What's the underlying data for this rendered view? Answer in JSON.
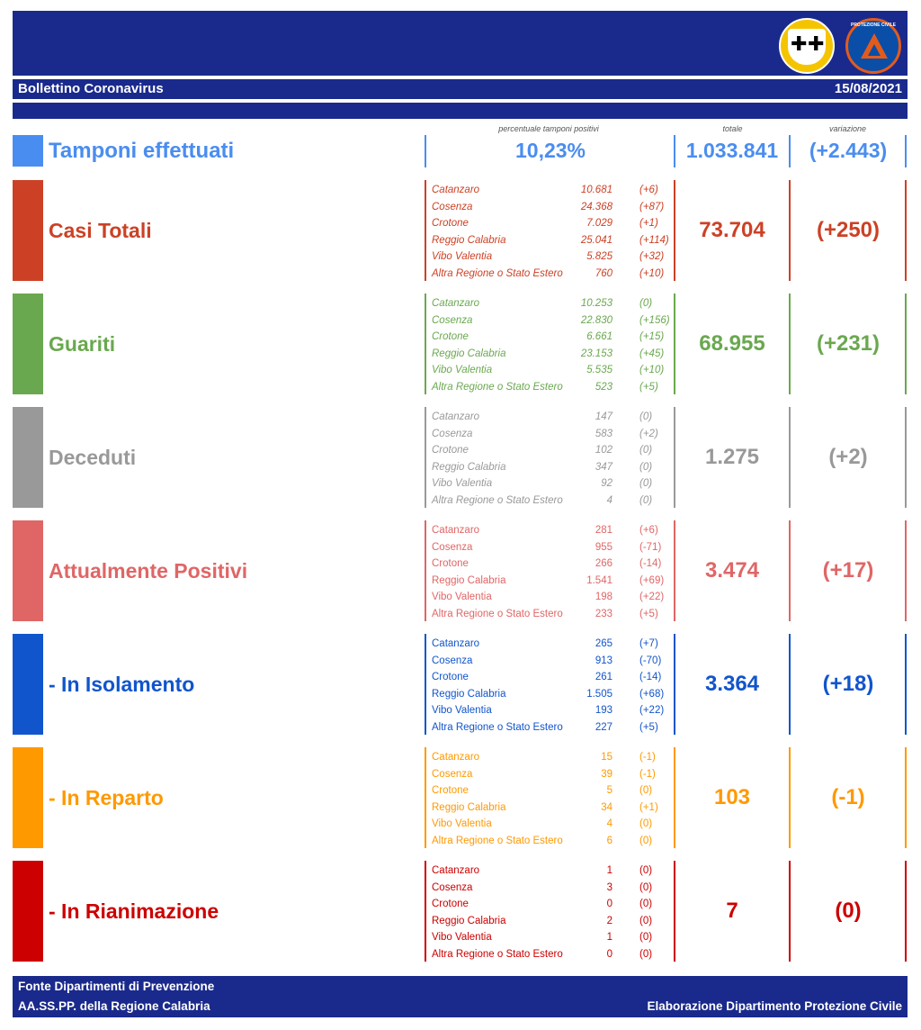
{
  "header": {
    "title": "Bollettino Coronavirus",
    "date": "15/08/2021",
    "col_percent": "percentuale tamponi positivi",
    "col_total": "totale",
    "col_variation": "variazione"
  },
  "tamponi": {
    "label": "Tamponi effettuati",
    "percent": "10,23%",
    "total": "1.033.841",
    "variation": "(+2.443)",
    "color": "#4a8df0"
  },
  "sections": [
    {
      "label": "Casi Totali",
      "color": "#cc4125",
      "italic": true,
      "total": "73.704",
      "variation": "(+250)",
      "rows": [
        {
          "name": "Catanzaro",
          "value": "10.681",
          "delta": "(+6)"
        },
        {
          "name": "Cosenza",
          "value": "24.368",
          "delta": "(+87)"
        },
        {
          "name": "Crotone",
          "value": "7.029",
          "delta": "(+1)"
        },
        {
          "name": "Reggio Calabria",
          "value": "25.041",
          "delta": "(+114)"
        },
        {
          "name": "Vibo Valentia",
          "value": "5.825",
          "delta": "(+32)"
        },
        {
          "name": "Altra Regione o Stato Estero",
          "value": "760",
          "delta": "(+10)"
        }
      ]
    },
    {
      "label": "Guariti",
      "color": "#6aa84f",
      "italic": true,
      "total": "68.955",
      "variation": "(+231)",
      "rows": [
        {
          "name": "Catanzaro",
          "value": "10.253",
          "delta": "(0)"
        },
        {
          "name": "Cosenza",
          "value": "22.830",
          "delta": "(+156)"
        },
        {
          "name": "Crotone",
          "value": "6.661",
          "delta": "(+15)"
        },
        {
          "name": "Reggio Calabria",
          "value": "23.153",
          "delta": "(+45)"
        },
        {
          "name": "Vibo Valentia",
          "value": "5.535",
          "delta": "(+10)"
        },
        {
          "name": "Altra Regione o Stato Estero",
          "value": "523",
          "delta": "(+5)"
        }
      ]
    },
    {
      "label": "Deceduti",
      "color": "#999999",
      "italic": true,
      "total": "1.275",
      "variation": "(+2)",
      "rows": [
        {
          "name": "Catanzaro",
          "value": "147",
          "delta": "(0)"
        },
        {
          "name": "Cosenza",
          "value": "583",
          "delta": "(+2)"
        },
        {
          "name": "Crotone",
          "value": "102",
          "delta": "(0)"
        },
        {
          "name": "Reggio Calabria",
          "value": "347",
          "delta": "(0)"
        },
        {
          "name": "Vibo Valentia",
          "value": "92",
          "delta": "(0)"
        },
        {
          "name": "Altra Regione o Stato Estero",
          "value": "4",
          "delta": "(0)"
        }
      ]
    },
    {
      "label": "Attualmente Positivi",
      "color": "#e06666",
      "italic": false,
      "total": "3.474",
      "variation": "(+17)",
      "rows": [
        {
          "name": "Catanzaro",
          "value": "281",
          "delta": "(+6)"
        },
        {
          "name": "Cosenza",
          "value": "955",
          "delta": "(-71)"
        },
        {
          "name": "Crotone",
          "value": "266",
          "delta": "(-14)"
        },
        {
          "name": "Reggio Calabria",
          "value": "1.541",
          "delta": "(+69)"
        },
        {
          "name": "Vibo Valentia",
          "value": "198",
          "delta": "(+22)"
        },
        {
          "name": "Altra Regione o Stato Estero",
          "value": "233",
          "delta": "(+5)"
        }
      ]
    },
    {
      "label": "- In Isolamento",
      "color": "#1155cc",
      "italic": false,
      "total": "3.364",
      "variation": "(+18)",
      "rows": [
        {
          "name": "Catanzaro",
          "value": "265",
          "delta": "(+7)"
        },
        {
          "name": "Cosenza",
          "value": "913",
          "delta": "(-70)"
        },
        {
          "name": "Crotone",
          "value": "261",
          "delta": "(-14)"
        },
        {
          "name": "Reggio Calabria",
          "value": "1.505",
          "delta": "(+68)"
        },
        {
          "name": "Vibo Valentia",
          "value": "193",
          "delta": "(+22)"
        },
        {
          "name": "Altra Regione o Stato Estero",
          "value": "227",
          "delta": "(+5)"
        }
      ]
    },
    {
      "label": "- In Reparto",
      "color": "#ff9900",
      "italic": false,
      "total": "103",
      "variation": "(-1)",
      "rows": [
        {
          "name": "Catanzaro",
          "value": "15",
          "delta": "(-1)"
        },
        {
          "name": "Cosenza",
          "value": "39",
          "delta": "(-1)"
        },
        {
          "name": "Crotone",
          "value": "5",
          "delta": "(0)"
        },
        {
          "name": "Reggio Calabria",
          "value": "34",
          "delta": "(+1)"
        },
        {
          "name": "Vibo Valentia",
          "value": "4",
          "delta": "(0)"
        },
        {
          "name": "Altra Regione o Stato Estero",
          "value": "6",
          "delta": "(0)"
        }
      ]
    },
    {
      "label": "- In Rianimazione",
      "color": "#cc0000",
      "italic": false,
      "total": "7",
      "variation": "(0)",
      "rows": [
        {
          "name": "Catanzaro",
          "value": "1",
          "delta": "(0)"
        },
        {
          "name": "Cosenza",
          "value": "3",
          "delta": "(0)"
        },
        {
          "name": "Crotone",
          "value": "0",
          "delta": "(0)"
        },
        {
          "name": "Reggio Calabria",
          "value": "2",
          "delta": "(0)"
        },
        {
          "name": "Vibo Valentia",
          "value": "1",
          "delta": "(0)"
        },
        {
          "name": "Altra Regione o Stato Estero",
          "value": "0",
          "delta": "(0)"
        }
      ]
    }
  ],
  "footer": {
    "source_line1": "Fonte Dipartimenti di Prevenzione",
    "source_line2": "AA.SS.PP.  della Regione Calabria",
    "credit": "Elaborazione Dipartimento Protezione Civile"
  },
  "logos": {
    "region_logo": "Regione Calabria coat of arms",
    "civil_protection_logo_text": "PROTEZIONE CIVILE Regione Calabria"
  }
}
